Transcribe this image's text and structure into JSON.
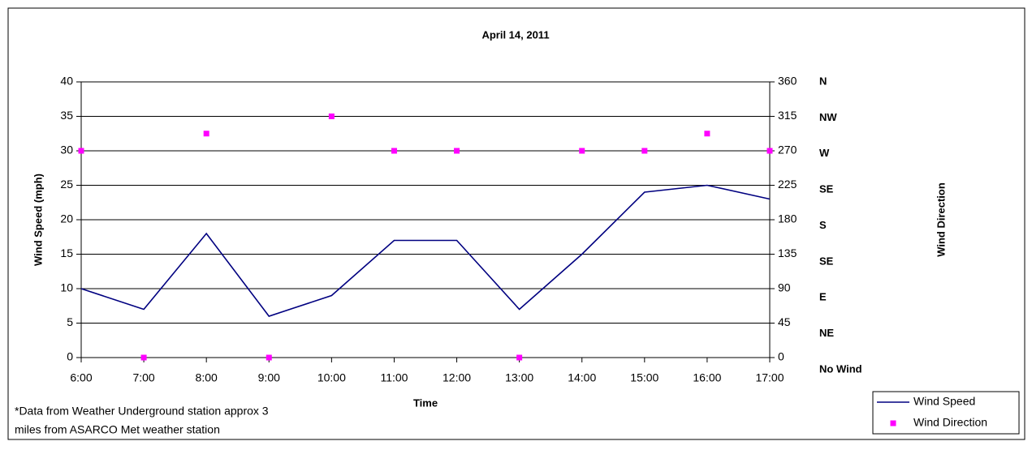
{
  "chart_data": {
    "type": "line",
    "title": "April 14, 2011",
    "x_label": "Time",
    "y_label": "Wind Speed (mph)",
    "y2_label": "Wind Direction",
    "categories": [
      "6:00",
      "7:00",
      "8:00",
      "9:00",
      "10:00",
      "11:00",
      "12:00",
      "13:00",
      "14:00",
      "15:00",
      "16:00",
      "17:00"
    ],
    "series": [
      {
        "name": "Wind Speed",
        "type": "line",
        "color": "#000080",
        "values": [
          10,
          7,
          18,
          6,
          9,
          17,
          17,
          7,
          15,
          24,
          25,
          23
        ]
      },
      {
        "name": "Wind Direction",
        "type": "scatter",
        "axis": "y2",
        "color": "#ff00ff",
        "values": [
          270,
          0,
          292.5,
          0,
          315,
          270,
          270,
          0,
          270,
          270,
          292.5,
          270
        ]
      }
    ],
    "ylim": [
      0,
      40
    ],
    "yticks": [
      0,
      5,
      10,
      15,
      20,
      25,
      30,
      35,
      40
    ],
    "y2lim": [
      0,
      360
    ],
    "y2ticks": [
      0,
      45,
      90,
      135,
      180,
      225,
      270,
      315,
      360
    ],
    "direction_labels": [
      "N",
      "NW",
      "W",
      "SE",
      "S",
      "SE",
      "E",
      "NE",
      "No Wind"
    ],
    "grid": true,
    "legend": "lower right",
    "note": [
      "*Data from Weather Underground station approx 3",
      "miles from ASARCO Met weather station"
    ]
  }
}
